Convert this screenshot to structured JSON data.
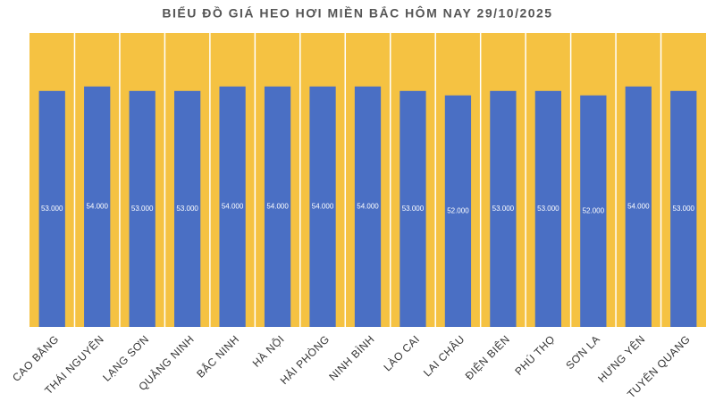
{
  "chart_data": {
    "type": "bar",
    "title": "BIỂU ĐỒ GIÁ HEO HƠI MIỀN BẮC HÔM NAY 29/10/2025",
    "categories": [
      "CAO BẰNG",
      "THÁI NGUYÊN",
      "LẠNG SƠN",
      "QUẢNG NINH",
      "BẮC NINH",
      "HÀ NỘI",
      "HẢI PHÒNG",
      "NINH BÌNH",
      "LÀO CAI",
      "LAI CHÂU",
      "ĐIỆN BIÊN",
      "PHÚ THỌ",
      "SƠN LA",
      "HƯNG YÊN",
      "TUYÊN QUANG"
    ],
    "values": [
      53000,
      54000,
      53000,
      53000,
      54000,
      54000,
      54000,
      54000,
      53000,
      52000,
      53000,
      53000,
      52000,
      54000,
      53000
    ],
    "value_labels": [
      "53.000",
      "54.000",
      "53.000",
      "53.000",
      "54.000",
      "54.000",
      "54.000",
      "54.000",
      "53.000",
      "52.000",
      "53.000",
      "53.000",
      "52.000",
      "54.000",
      "53.000"
    ],
    "color": "#4a6fc4",
    "background": "#f5c242",
    "ylim": [
      0,
      66000
    ]
  }
}
